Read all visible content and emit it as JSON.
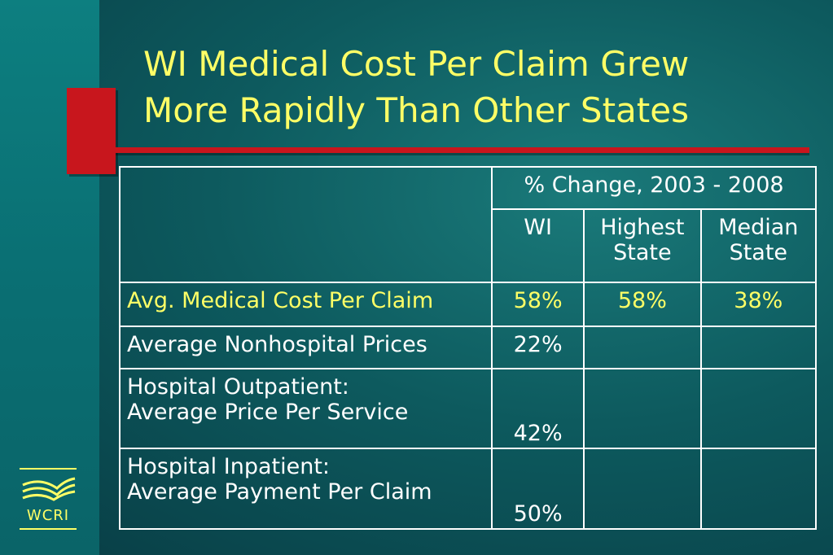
{
  "title": {
    "line1": "WI Medical Cost Per Claim Grew",
    "line2": "More Rapidly Than Other States"
  },
  "table": {
    "group_header": "% Change, 2003 - 2008",
    "columns": [
      {
        "line1": "WI",
        "line2": ""
      },
      {
        "line1": "Highest",
        "line2": "State"
      },
      {
        "line1": "Median",
        "line2": "State"
      }
    ],
    "rows": [
      {
        "label_line1": "Avg. Medical Cost Per Claim",
        "label_line2": "",
        "wi": "58%",
        "highest": "58%",
        "median": "38%"
      },
      {
        "label_line1": "Average Nonhospital Prices",
        "label_line2": "",
        "wi": "22%",
        "highest": "",
        "median": ""
      },
      {
        "label_line1": "Hospital Outpatient:",
        "label_line2": "Average Price Per Service",
        "wi": "42%",
        "highest": "",
        "median": ""
      },
      {
        "label_line1": "Hospital Inpatient:",
        "label_line2": "Average Payment Per Claim",
        "wi": "50%",
        "highest": "",
        "median": ""
      }
    ]
  },
  "logo": {
    "text": "WCRI",
    "icon": "wcri-logo-icon"
  },
  "colors": {
    "title": "#ffff66",
    "accent_red": "#c8161d",
    "text": "#ffffff"
  }
}
